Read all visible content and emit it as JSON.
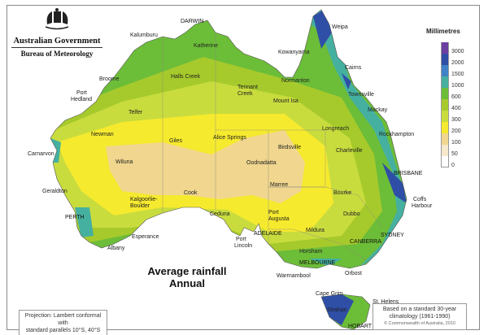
{
  "header": {
    "government": "Australian Government",
    "bureau": "Bureau of Meteorology"
  },
  "title": {
    "line1": "Average rainfall",
    "line2": "Annual"
  },
  "legend": {
    "title": "Millimetres",
    "classes": [
      {
        "label": "3000",
        "color": "#6b3fa0"
      },
      {
        "label": "2000",
        "color": "#2f4ea6"
      },
      {
        "label": "1500",
        "color": "#3f82c8"
      },
      {
        "label": "1000",
        "color": "#45b0a0"
      },
      {
        "label": "600",
        "color": "#6cbd38"
      },
      {
        "label": "400",
        "color": "#a6ca2c"
      },
      {
        "label": "300",
        "color": "#c9dc3e"
      },
      {
        "label": "200",
        "color": "#f6ea2e"
      },
      {
        "label": "100",
        "color": "#f0d68e"
      },
      {
        "label": "50",
        "color": "#f6e9cc"
      },
      {
        "label": "0",
        "color": "#ffffff"
      }
    ]
  },
  "map": {
    "cities": [
      "DARWIN",
      "Weipa",
      "Kalumburu",
      "Kowanyama",
      "Katherine",
      "Cairns",
      "Broome",
      "Halls Creek",
      "Normanton",
      "Townsville",
      "Port",
      "Hedland",
      "Tennant",
      "Creek",
      "Mount Isa",
      "Mackay",
      "Telfer",
      "Longreach",
      "Rockhampton",
      "Newman",
      "Giles",
      "Alice Springs",
      "Birdsville",
      "Charleville",
      "Carnarvon",
      "Wiluna",
      "Oodnadatta",
      "BRISBANE",
      "Marree",
      "Bourke",
      "Coffs",
      "Harbour",
      "Geraldton",
      "Kalgoorlie-",
      "Boulder",
      "Cook",
      "Ceduna",
      "Port",
      "Augusta",
      "Dubbo",
      "PERTH",
      "ADELAIDE",
      "Mildura",
      "CANBERRA",
      "SYDNEY",
      "Esperance",
      "Port",
      "Lincoln",
      "Albany",
      "Horsham",
      "MELBOURNE",
      "Orbost",
      "Warrnambool",
      "Cape Grim",
      "St. Helens",
      "Strahan",
      "HOBART"
    ]
  },
  "notes": {
    "projection_line1": "Projection: Lambert conformal with",
    "projection_line2": "standard parallels 10°S, 40°S",
    "basis_line1": "Based on a standard 30-year",
    "basis_line2": "climatology (1961-1990)",
    "copyright": "© Commonwealth of Australia, 2010"
  }
}
